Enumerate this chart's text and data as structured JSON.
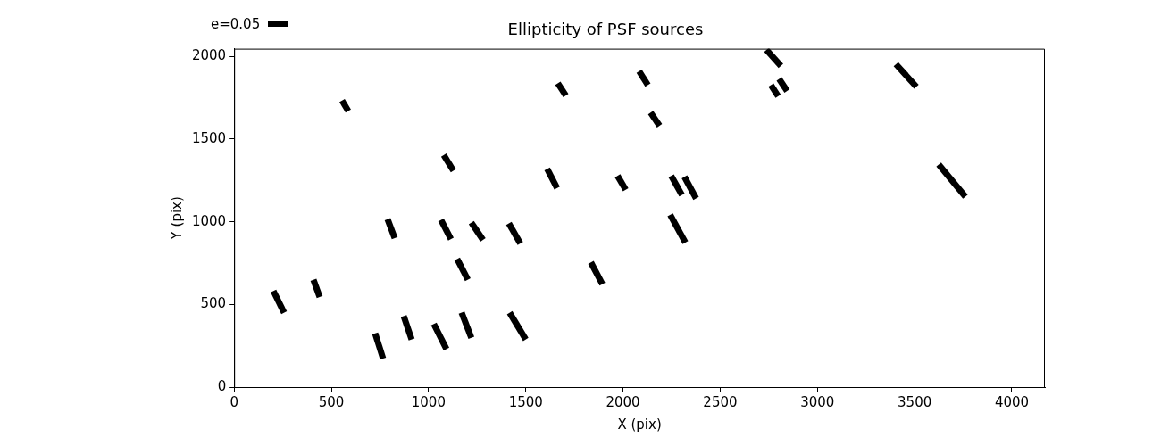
{
  "chart_data": {
    "type": "line",
    "title": "Ellipticity of PSF sources",
    "xlabel": "X (pix)",
    "ylabel": "Y (pix)",
    "annotations": [
      "e=0.05"
    ],
    "xlim": [
      0,
      4170
    ],
    "xticks": [
      0,
      500,
      1000,
      1500,
      2000,
      2500,
      3000,
      3500,
      4000
    ],
    "ylim": [
      0,
      2047
    ],
    "yticks": [
      0,
      500,
      1000,
      1500,
      2000
    ],
    "grid": false,
    "marker": "none",
    "line_style": "solid",
    "series": [
      {
        "color": "#000000",
        "x": [
          202,
          257
        ],
        "values": [
          581,
          450
        ]
      },
      {
        "color": "#000000",
        "x": [
          408,
          440
        ],
        "values": [
          649,
          545
        ]
      },
      {
        "color": "#000000",
        "x": [
          555,
          587
        ],
        "values": [
          1733,
          1670
        ]
      },
      {
        "color": "#000000",
        "x": [
          725,
          766
        ],
        "values": [
          325,
          173
        ]
      },
      {
        "color": "#000000",
        "x": [
          872,
          913
        ],
        "values": [
          429,
          288
        ]
      },
      {
        "color": "#000000",
        "x": [
          1027,
          1092
        ],
        "values": [
          382,
          230
        ]
      },
      {
        "color": "#000000",
        "x": [
          1170,
          1220
        ],
        "values": [
          450,
          298
        ]
      },
      {
        "color": "#000000",
        "x": [
          1417,
          1500
        ],
        "values": [
          450,
          288
        ]
      },
      {
        "color": "#000000",
        "x": [
          789,
          826
        ],
        "values": [
          1016,
          901
        ]
      },
      {
        "color": "#000000",
        "x": [
          1064,
          1115
        ],
        "values": [
          1011,
          895
        ]
      },
      {
        "color": "#000000",
        "x": [
          1220,
          1280
        ],
        "values": [
          995,
          890
        ]
      },
      {
        "color": "#000000",
        "x": [
          1413,
          1472
        ],
        "values": [
          990,
          869
        ]
      },
      {
        "color": "#000000",
        "x": [
          1147,
          1202
        ],
        "values": [
          775,
          649
        ]
      },
      {
        "color": "#000000",
        "x": [
          1078,
          1128
        ],
        "values": [
          1403,
          1309
        ]
      },
      {
        "color": "#000000",
        "x": [
          1610,
          1661
        ],
        "values": [
          1320,
          1204
        ]
      },
      {
        "color": "#000000",
        "x": [
          1665,
          1706
        ],
        "values": [
          1838,
          1764
        ]
      },
      {
        "color": "#000000",
        "x": [
          1835,
          1894
        ],
        "values": [
          754,
          623
        ]
      },
      {
        "color": "#000000",
        "x": [
          1972,
          2014
        ],
        "values": [
          1278,
          1194
        ]
      },
      {
        "color": "#000000",
        "x": [
          2083,
          2128
        ],
        "values": [
          1911,
          1827
        ]
      },
      {
        "color": "#000000",
        "x": [
          2142,
          2188
        ],
        "values": [
          1660,
          1581
        ]
      },
      {
        "color": "#000000",
        "x": [
          2243,
          2321
        ],
        "values": [
          1042,
          874
        ]
      },
      {
        "color": "#000000",
        "x": [
          2248,
          2303
        ],
        "values": [
          1278,
          1162
        ]
      },
      {
        "color": "#000000",
        "x": [
          2316,
          2376
        ],
        "values": [
          1272,
          1141
        ]
      },
      {
        "color": "#000000",
        "x": [
          2738,
          2812
        ],
        "values": [
          2040,
          1943
        ]
      },
      {
        "color": "#000000",
        "x": [
          2761,
          2798
        ],
        "values": [
          1827,
          1759
        ]
      },
      {
        "color": "#000000",
        "x": [
          2803,
          2844
        ],
        "values": [
          1864,
          1791
        ]
      },
      {
        "color": "#000000",
        "x": [
          3404,
          3509
        ],
        "values": [
          1953,
          1817
        ]
      },
      {
        "color": "#000000",
        "x": [
          3624,
          3761
        ],
        "values": [
          1346,
          1152
        ]
      }
    ]
  }
}
